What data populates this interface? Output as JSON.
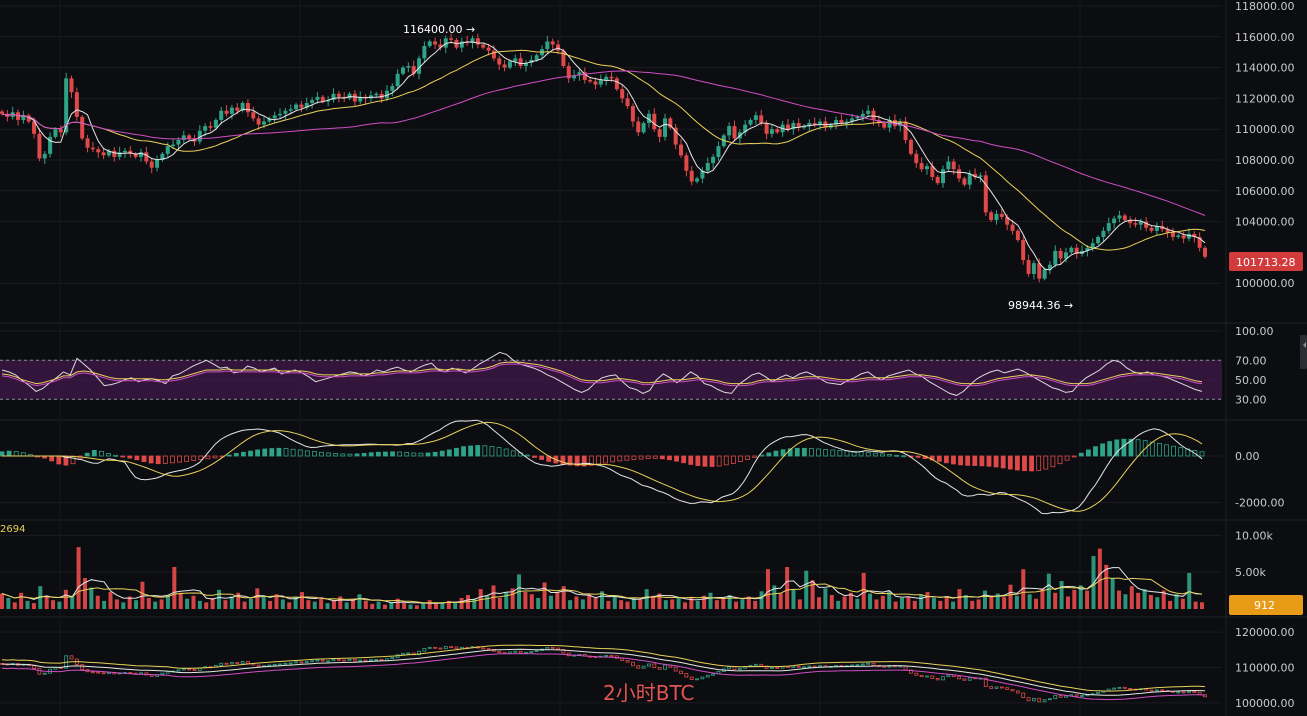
{
  "chart_data": [
    {
      "type": "candlestick",
      "pane": "price",
      "title": "",
      "ylim": [
        98000,
        118000
      ],
      "yticks": [
        "118000.00",
        "116000.00",
        "114000.00",
        "112000.00",
        "110000.00",
        "108000.00",
        "106000.00",
        "104000.00",
        "100000.00"
      ],
      "close": [
        111000,
        110800,
        111100,
        110600,
        110900,
        110500,
        109700,
        108100,
        108400,
        109500,
        110000,
        109800,
        113300,
        112400,
        110800,
        109400,
        108800,
        108700,
        108500,
        108300,
        108600,
        108200,
        108500,
        108600,
        108400,
        108200,
        108500,
        107900,
        107500,
        108000,
        108400,
        108900,
        109000,
        109300,
        109600,
        109400,
        109200,
        109900,
        110200,
        110100,
        110600,
        111200,
        111000,
        111400,
        111200,
        111700,
        111100,
        110700,
        110300,
        110500,
        110700,
        110900,
        111000,
        111200,
        111300,
        111600,
        111400,
        111700,
        111900,
        112100,
        111800,
        111900,
        112300,
        112100,
        112000,
        112300,
        111800,
        112100,
        112000,
        112200,
        112300,
        112000,
        112500,
        112800,
        113600,
        114000,
        114100,
        113600,
        114600,
        115400,
        115700,
        115500,
        115300,
        115900,
        115800,
        115300,
        115700,
        115600,
        115900,
        115500,
        115300,
        115100,
        114600,
        114200,
        114000,
        114400,
        114600,
        114100,
        114300,
        114500,
        114800,
        115200,
        115700,
        115500,
        115100,
        114100,
        113300,
        113500,
        113700,
        113200,
        113100,
        112900,
        113200,
        113400,
        113300,
        112600,
        112000,
        111500,
        110500,
        109800,
        110400,
        111000,
        110000,
        109500,
        110700,
        110100,
        109000,
        108300,
        107300,
        106600,
        106800,
        107300,
        107800,
        108200,
        108900,
        109600,
        110200,
        109400,
        109800,
        110300,
        110600,
        110900,
        110400,
        109700,
        110000,
        109800,
        110300,
        110000,
        110400,
        110100,
        110200,
        110400,
        110300,
        110500,
        110100,
        110300,
        110600,
        110400,
        110500,
        110700,
        110800,
        111000,
        111200,
        110600,
        110400,
        110100,
        110600,
        110200,
        110500,
        109300,
        108400,
        107800,
        107400,
        107600,
        106900,
        106500,
        107400,
        107900,
        107400,
        106800,
        106400,
        107100,
        106900,
        107000,
        104600,
        104100,
        104500,
        104300,
        103800,
        103400,
        102800,
        101500,
        100600,
        101300,
        100300,
        100900,
        101200,
        102100,
        101600,
        102000,
        102300,
        101900,
        102100,
        102300,
        102600,
        103000,
        103400,
        103900,
        104200,
        104400,
        104100,
        103900,
        103800,
        104000,
        103600,
        103400,
        103700,
        103500,
        103300,
        103000,
        103100,
        102900,
        103200,
        103000,
        102300,
        101713
      ]
    },
    {
      "type": "line",
      "pane": "rsi",
      "ylim": [
        20,
        100
      ],
      "yticks": [
        "100.00",
        "70.00",
        "50.00",
        "30.00"
      ],
      "band": [
        30,
        70
      ],
      "series": [
        {
          "values": [
            60,
            58,
            55,
            49,
            44,
            38,
            41,
            47,
            52,
            58,
            55,
            72,
            66,
            60,
            52,
            44,
            45,
            47,
            50,
            52,
            48,
            50,
            51,
            49,
            46,
            54,
            56,
            60,
            64,
            67,
            70,
            66,
            62,
            63,
            57,
            58,
            64,
            62,
            58,
            60,
            62,
            56,
            58,
            60,
            57,
            53,
            48,
            50,
            52,
            54,
            56,
            58,
            57,
            54,
            56,
            60,
            58,
            61,
            63,
            60,
            58,
            62,
            65,
            67,
            60,
            58,
            62,
            60,
            57,
            61,
            66,
            70,
            74,
            78,
            76,
            70,
            66,
            64,
            62,
            59,
            55,
            52,
            48,
            44,
            40,
            37,
            40,
            47,
            52,
            54,
            55,
            48,
            42,
            40,
            36,
            39,
            50,
            56,
            52,
            47,
            52,
            58,
            54,
            46,
            44,
            40,
            37,
            36,
            45,
            50,
            55,
            57,
            53,
            48,
            52,
            55,
            52,
            56,
            58,
            55,
            51,
            47,
            46,
            45,
            49,
            52,
            56,
            58,
            53,
            50,
            54,
            56,
            58,
            60,
            56,
            53,
            48,
            44,
            40,
            36,
            34,
            38,
            45,
            51,
            55,
            58,
            60,
            57,
            59,
            61,
            58,
            54,
            50,
            46,
            42,
            40,
            37,
            38,
            46,
            52,
            56,
            60,
            66,
            70,
            68,
            62,
            58,
            56,
            58,
            55,
            54,
            52,
            49,
            46,
            43,
            40,
            38
          ]
        },
        {
          "values": [
            56,
            55,
            53,
            50,
            48,
            46,
            47,
            49,
            51,
            54,
            54,
            58,
            59,
            58,
            56,
            54,
            52,
            51,
            51,
            51,
            51,
            51,
            51,
            50,
            50,
            51,
            52,
            54,
            56,
            58,
            60,
            60,
            60,
            61,
            60,
            60,
            60,
            60,
            60,
            60,
            60,
            59,
            59,
            59,
            59,
            58,
            56,
            55,
            55,
            55,
            55,
            56,
            56,
            56,
            56,
            57,
            57,
            58,
            59,
            59,
            59,
            59,
            60,
            61,
            61,
            60,
            61,
            61,
            60,
            60,
            61,
            62,
            64,
            67,
            68,
            68,
            68,
            67,
            66,
            65,
            63,
            61,
            59,
            56,
            53,
            50,
            49,
            49,
            49,
            50,
            51,
            51,
            50,
            49,
            47,
            47,
            48,
            49,
            50,
            50,
            50,
            51,
            52,
            51,
            50,
            49,
            47,
            46,
            46,
            46,
            47,
            49,
            50,
            50,
            50,
            51,
            51,
            52,
            53,
            53,
            53,
            52,
            51,
            50,
            50,
            50,
            51,
            52,
            52,
            52,
            52,
            53,
            54,
            55,
            55,
            55,
            54,
            53,
            51,
            49,
            47,
            46,
            46,
            46,
            47,
            49,
            51,
            52,
            53,
            54,
            55,
            55,
            54,
            53,
            51,
            49,
            47,
            46,
            46,
            46,
            47,
            49,
            51,
            53,
            55,
            56,
            57,
            57,
            57,
            57,
            56,
            55,
            54,
            53,
            51,
            49,
            48
          ]
        }
      ]
    },
    {
      "type": "bar",
      "pane": "macd",
      "ylim": [
        -2400,
        1200
      ],
      "yticks": [
        "0.00",
        "-2000.00"
      ],
      "values": [
        180,
        210,
        190,
        140,
        60,
        -20,
        -90,
        -210,
        -340,
        -390,
        -330,
        -120,
        120,
        240,
        200,
        110,
        30,
        -40,
        -90,
        -160,
        -240,
        -300,
        -330,
        -320,
        -290,
        -260,
        -230,
        -190,
        -160,
        -120,
        -80,
        -30,
        40,
        110,
        160,
        210,
        260,
        300,
        320,
        330,
        320,
        290,
        260,
        220,
        190,
        160,
        130,
        110,
        90,
        80,
        90,
        110,
        140,
        160,
        170,
        180,
        170,
        150,
        130,
        120,
        130,
        160,
        210,
        260,
        330,
        400,
        430,
        450,
        440,
        410,
        360,
        300,
        220,
        140,
        40,
        -60,
        -150,
        -230,
        -300,
        -350,
        -390,
        -420,
        -430,
        -400,
        -350,
        -300,
        -250,
        -210,
        -180,
        -150,
        -130,
        -110,
        -100,
        -120,
        -160,
        -220,
        -290,
        -360,
        -410,
        -440,
        -450,
        -430,
        -380,
        -320,
        -240,
        -150,
        -60,
        40,
        130,
        210,
        270,
        310,
        330,
        330,
        320,
        300,
        280,
        260,
        240,
        220,
        200,
        180,
        150,
        120,
        90,
        60,
        30,
        10,
        -20,
        -60,
        -110,
        -170,
        -230,
        -290,
        -340,
        -380,
        -400,
        -410,
        -420,
        -440,
        -470,
        -510,
        -560,
        -600,
        -630,
        -640,
        -620,
        -560,
        -460,
        -330,
        -180,
        -20,
        120,
        260,
        400,
        520,
        620,
        690,
        720,
        720,
        700,
        660,
        600,
        540,
        480,
        420,
        360,
        300,
        240,
        180
      ]
    },
    {
      "type": "bar",
      "pane": "volume",
      "ylim": [
        0,
        11000
      ],
      "yticks": [
        "10.00k",
        "5.00k"
      ],
      "values": [
        2100,
        1500,
        900,
        2200,
        1100,
        800,
        3100,
        1700,
        1200,
        1000,
        2600,
        1800,
        8400,
        4200,
        2900,
        1800,
        1100,
        2300,
        1300,
        900,
        1700,
        1200,
        3700,
        1500,
        1000,
        1300,
        1900,
        5700,
        2200,
        1400,
        1800,
        1100,
        900,
        1500,
        2600,
        1200,
        1700,
        2200,
        1000,
        1400,
        2800,
        1600,
        1100,
        2000,
        1300,
        900,
        1700,
        2300,
        1200,
        1000,
        1400,
        800,
        1200,
        1700,
        900,
        1300,
        2000,
        1100,
        700,
        1000,
        600,
        900,
        1400,
        800,
        600,
        500,
        800,
        1200,
        700,
        900,
        1100,
        800,
        1500,
        1900,
        1300,
        2700,
        1800,
        3200,
        1500,
        2300,
        2800,
        4700,
        2300,
        2000,
        1500,
        3600,
        1800,
        2300,
        3100,
        1200,
        1700,
        1300,
        2000,
        1500,
        2400,
        1100,
        1700,
        1200,
        1000,
        1500,
        1300,
        2700,
        1800,
        2100,
        1200,
        1300,
        1500,
        900,
        1500,
        1100,
        1800,
        2200,
        1200,
        1500,
        1900,
        1000,
        1300,
        1700,
        1100,
        2400,
        5400,
        3200,
        2100,
        5700,
        2700,
        1300,
        5200,
        3900,
        1600,
        2800,
        1900,
        1100,
        1700,
        2200,
        1400,
        4900,
        2100,
        1300,
        1800,
        2400,
        1000,
        1500,
        1600,
        1100,
        1900,
        2300,
        1500,
        1100,
        1700,
        1000,
        2700,
        1900,
        1100,
        1300,
        2500,
        1800,
        2100,
        1600,
        3300,
        1800,
        5400,
        2000,
        1400,
        2800,
        4800,
        2200,
        3800,
        1700,
        2600,
        3200,
        2500,
        7200,
        8200,
        6000,
        4200,
        2500,
        2000,
        3100,
        2200,
        2700,
        1900,
        1600,
        2500,
        1100,
        2000,
        1400,
        4900,
        1000,
        912
      ]
    },
    {
      "type": "line",
      "pane": "overview",
      "ylim": [
        98000,
        122000
      ],
      "yticks": [
        "120000.00",
        "110000.00",
        "100000.00"
      ]
    }
  ],
  "annotations": {
    "high_label": "116400.00 →",
    "low_label": "98944.36 →",
    "last_price": "101713.28",
    "volume_badge": "912",
    "volume_flag": "2694",
    "watermark": "2小时BTC"
  },
  "colors": {
    "background": "#0c0d10",
    "up": "#2fa387",
    "down": "#e0494a",
    "ma_fast": "#e6e6e6",
    "ma_mid": "#e8d25a",
    "ma_slow": "#cf4fc7",
    "rsi_band": "#3b1744",
    "badge_price": "#d13b3b",
    "badge_volume": "#e79b16"
  }
}
